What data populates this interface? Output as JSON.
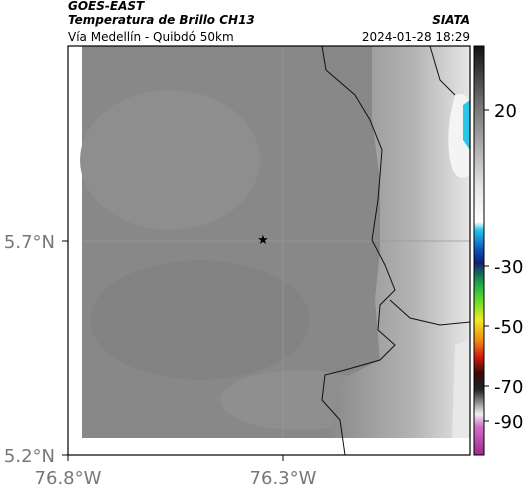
{
  "header": {
    "satellite": "GOES-EAST",
    "product": "Temperatura de Brillo CH13",
    "source": "SIATA",
    "region": "Vía Medellín - Quibdó 50km",
    "timestamp": "2024-01-28 18:29"
  },
  "axes": {
    "lat_labels": [
      "5.7°N",
      "5.2°N"
    ],
    "lon_labels": [
      "76.8°W",
      "76.3°W"
    ]
  },
  "colorbar": {
    "ticks": [
      20,
      -30,
      -50,
      -70,
      -90
    ]
  }
}
